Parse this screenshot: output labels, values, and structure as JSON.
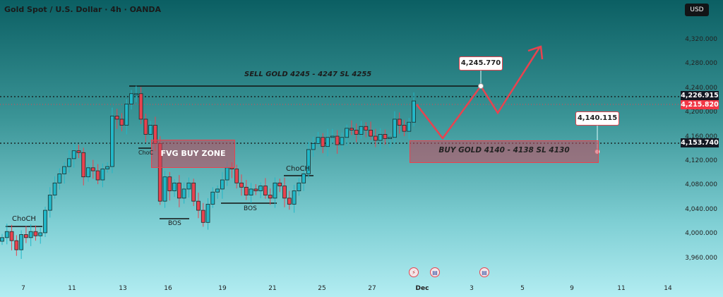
{
  "header": {
    "title": "Gold Spot / U.S. Dollar · 4h · OANDA",
    "currency": "USD"
  },
  "price_axis": {
    "ticks": [
      "4,320.000",
      "4,280.000",
      "4,240.000",
      "4,200.000",
      "4,160.000",
      "4,120.000",
      "4,080.000",
      "4,040.000",
      "4,000.000",
      "3,960.000"
    ],
    "labels": [
      {
        "text": "4,226.915",
        "color": "#131722"
      },
      {
        "text": "4,215.820",
        "color": "#f23645"
      },
      {
        "text": "4,153.740",
        "color": "#131722"
      }
    ]
  },
  "time_axis": {
    "ticks": [
      "7",
      "11",
      "13",
      "16",
      "19",
      "21",
      "25",
      "27",
      "Dec",
      "3",
      "5",
      "9",
      "11",
      "14"
    ]
  },
  "colors": {
    "up": "#22b8c8",
    "down": "#e8434f",
    "annotation": "#e8434f"
  },
  "annotations": {
    "sell_text": "SELL GOLD 4245 - 4247 SL 4255",
    "buy_text": "BUY GOLD 4140 - 4138 SL 4130",
    "fvg_text": "FVG BUY ZONE",
    "choch_1": "ChoCH",
    "choch_2": "ChoC",
    "choch_3": "ChoCH",
    "bos_1": "BOS",
    "bos_2": "BOS",
    "target_price": "4,245.770",
    "buy_price": "4,140.115"
  },
  "events": [
    {
      "icon": "lightning-icon"
    },
    {
      "icon": "us-flag-icon"
    },
    {
      "icon": "us-flag-icon"
    }
  ],
  "chart_data": {
    "type": "candlestick",
    "symbol": "XAUUSD",
    "timeframe": "4h",
    "ylim": [
      3950,
      4340
    ],
    "closes": [
      3995,
      4005,
      3990,
      3975,
      4000,
      3995,
      4005,
      3998,
      4003,
      4040,
      4065,
      4085,
      4100,
      4112,
      4125,
      4138,
      4135,
      4095,
      4110,
      4105,
      4090,
      4108,
      4112,
      4195,
      4190,
      4180,
      4215,
      4232,
      4232,
      4190,
      4165,
      4180,
      4150,
      4055,
      4095,
      4072,
      4085,
      4060,
      4075,
      4085,
      4055,
      4040,
      4020,
      4050,
      4070,
      4075,
      4090,
      4110,
      4108,
      4085,
      4078,
      4065,
      4075,
      4072,
      4080,
      4065,
      4060,
      4085,
      4080,
      4060,
      4050,
      4072,
      4085,
      4100,
      4140,
      4150,
      4160,
      4145,
      4160,
      4162,
      4148,
      4160,
      4175,
      4172,
      4165,
      4178,
      4172,
      4162,
      4155,
      4165,
      4158,
      4160,
      4190,
      4180,
      4170,
      4185,
      4220
    ]
  }
}
